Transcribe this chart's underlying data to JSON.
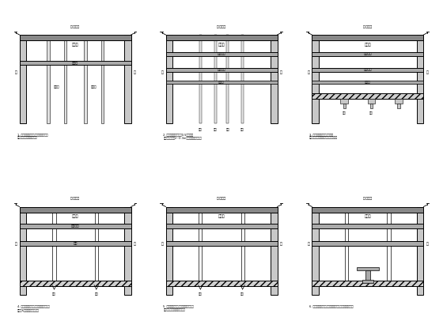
{
  "bg": "#ffffff",
  "wall_fc": "#c8c8c8",
  "slab_fc": "#888888",
  "beam_fc": "#aaaaaa",
  "hatch_fc": "#d0d0d0",
  "col_fc": "#e8e8e8",
  "panel_descs": [
    "1. 支挡结构、桓锦支撑、放顶板，顶板\n防水层、覆土、恢复路面。",
    "2. 土石方开挖到底板约0.5米处拆除\n第四道（换撑）2~0.3m，再向下挖至底板。",
    "3. 拆除换撑，拆除第底板后，\n施工底板、换撑底板施工、拆扣换撑。",
    "4. 模板、施工中板模板，施工中板楼板，\n施工中8换撑楼，拆扣换撑。",
    "5. 施工中板、拆除换撑，施工襨换撑楼\n施工后换撑楼板，拆扣换撑。",
    "6. 拆扣换撑、拆除换撑楼板、拆除，施工拆扣换撑楼板。"
  ]
}
